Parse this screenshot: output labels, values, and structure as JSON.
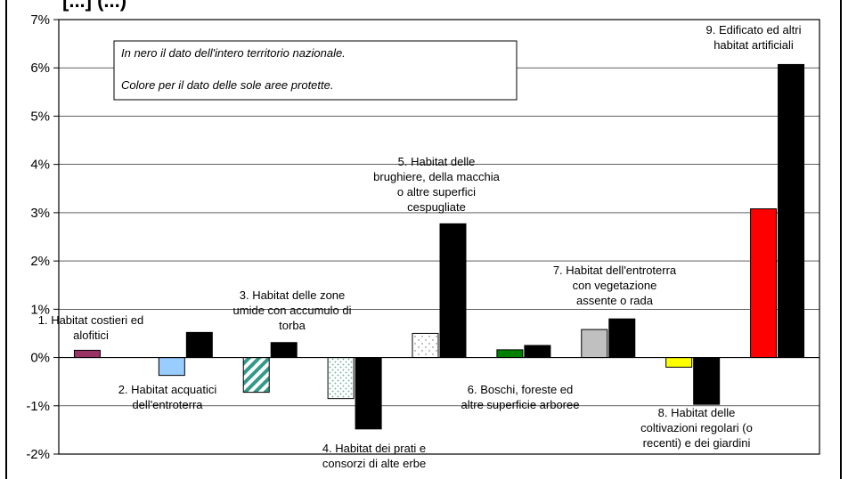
{
  "chart_data": {
    "type": "bar",
    "title": "[...] (...)",
    "y_unit": "%",
    "ylim": [
      -2,
      7
    ],
    "yticks": [
      -2,
      -1,
      0,
      1,
      2,
      3,
      4,
      5,
      6,
      7
    ],
    "y_tick_labels": [
      "-2%",
      "-1%",
      "0%",
      "1%",
      "2%",
      "3%",
      "4%",
      "5%",
      "6%",
      "7%"
    ],
    "grid": "horizontal",
    "legend_notes": [
      "In nero il dato dell'intero territorio nazionale.",
      "Colore per il dato delle sole aree protette."
    ],
    "categories": [
      {
        "label": [
          "1. Habitat costieri ed",
          "alofitici"
        ],
        "protected": 0.15,
        "national": 0.0,
        "color": "#993366",
        "pattern": "solid"
      },
      {
        "label": [
          "2. Habitat acquatici",
          "dell'entroterra"
        ],
        "protected": -0.37,
        "national": 0.52,
        "color": "#99ccff",
        "pattern": "solid"
      },
      {
        "label": [
          "3. Habitat delle zone",
          "umide con accumulo di",
          "torba"
        ],
        "protected": -0.72,
        "national": 0.31,
        "color": "#339988",
        "pattern": "diagonal"
      },
      {
        "label": [
          "4. Habitat dei prati e",
          "consorzi di alte erbe"
        ],
        "protected": -0.85,
        "national": -1.48,
        "color": "#66aa99",
        "pattern": "dots"
      },
      {
        "label": [
          "5. Habitat delle",
          "brughiere, della macchia",
          "o altre superfici",
          "cespugliate"
        ],
        "protected": 0.5,
        "national": 2.77,
        "color": "#888888",
        "pattern": "sparse-dots"
      },
      {
        "label": [
          "6. Boschi, foreste ed",
          "altre superficie arboree"
        ],
        "protected": 0.16,
        "national": 0.25,
        "color": "#008000",
        "pattern": "solid"
      },
      {
        "label": [
          "7. Habitat dell'entroterra",
          "con vegetazione",
          "assente o rada"
        ],
        "protected": 0.58,
        "national": 0.8,
        "color": "#c0c0c0",
        "pattern": "solid"
      },
      {
        "label": [
          "8. Habitat delle",
          "coltivazioni regolari (o",
          "recenti) e dei giardini"
        ],
        "protected": -0.2,
        "national": -0.97,
        "color": "#ffff00",
        "pattern": "solid"
      },
      {
        "label": [
          "9. Edificato ed altri",
          "habitat artificiali"
        ],
        "protected": 3.08,
        "national": 6.07,
        "color": "#ff0000",
        "pattern": "solid"
      }
    ],
    "national_color": "#000000"
  }
}
